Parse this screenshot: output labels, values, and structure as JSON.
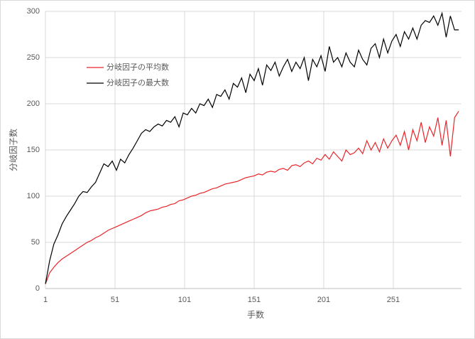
{
  "chart_data": {
    "type": "line",
    "x_label": "手数",
    "y_label": "分岐因子数",
    "x": [
      1,
      4,
      7,
      10,
      13,
      16,
      19,
      22,
      25,
      28,
      31,
      34,
      37,
      40,
      43,
      46,
      49,
      52,
      55,
      58,
      61,
      64,
      67,
      70,
      73,
      76,
      79,
      82,
      85,
      88,
      91,
      94,
      97,
      100,
      103,
      106,
      109,
      112,
      115,
      118,
      121,
      124,
      127,
      130,
      133,
      136,
      139,
      142,
      145,
      148,
      151,
      154,
      157,
      160,
      163,
      166,
      169,
      172,
      175,
      178,
      181,
      184,
      187,
      190,
      193,
      196,
      199,
      202,
      205,
      208,
      211,
      214,
      217,
      220,
      223,
      226,
      229,
      232,
      235,
      238,
      241,
      244,
      247,
      250,
      253,
      256,
      259,
      262,
      265,
      268,
      271,
      274,
      277,
      280,
      283,
      286,
      289,
      292,
      295,
      298
    ],
    "series": [
      {
        "name": "分岐因子の平均数",
        "color": "#e8252a",
        "values": [
          5,
          17,
          23,
          28,
          32,
          35,
          38,
          41,
          44,
          47,
          50,
          52,
          55,
          57,
          60,
          63,
          65,
          67,
          69,
          71,
          73,
          75,
          77,
          79,
          82,
          84,
          85,
          86,
          88,
          89,
          91,
          92,
          95,
          96,
          98,
          100,
          101,
          103,
          104,
          106,
          108,
          109,
          111,
          113,
          114,
          115,
          116,
          118,
          120,
          121,
          122,
          124,
          123,
          126,
          127,
          126,
          129,
          130,
          128,
          133,
          134,
          132,
          136,
          138,
          135,
          141,
          139,
          145,
          140,
          148,
          143,
          138,
          150,
          145,
          147,
          152,
          146,
          160,
          150,
          158,
          148,
          162,
          152,
          160,
          166,
          155,
          170,
          150,
          172,
          160,
          180,
          158,
          175,
          165,
          185,
          155,
          182,
          143,
          185,
          192
        ]
      },
      {
        "name": "分岐因子の最大数",
        "color": "#000000",
        "values": [
          5,
          30,
          48,
          58,
          70,
          78,
          85,
          92,
          100,
          105,
          104,
          110,
          115,
          125,
          135,
          132,
          138,
          128,
          140,
          136,
          145,
          152,
          160,
          168,
          172,
          170,
          175,
          178,
          176,
          182,
          180,
          186,
          175,
          190,
          188,
          195,
          190,
          200,
          198,
          205,
          196,
          210,
          208,
          215,
          205,
          222,
          218,
          228,
          212,
          232,
          225,
          238,
          220,
          242,
          236,
          245,
          230,
          240,
          248,
          235,
          245,
          238,
          250,
          225,
          248,
          240,
          252,
          235,
          262,
          245,
          250,
          240,
          255,
          245,
          240,
          258,
          248,
          242,
          260,
          265,
          250,
          270,
          255,
          268,
          275,
          262,
          278,
          270,
          282,
          270,
          285,
          290,
          288,
          295,
          285,
          298,
          272,
          295,
          280,
          280
        ]
      }
    ],
    "xlim": [
      1,
      300
    ],
    "xticks": [
      1,
      51,
      101,
      151,
      201,
      251
    ],
    "ylim": [
      0,
      300
    ],
    "yticks": [
      0,
      50,
      100,
      150,
      200,
      250,
      300
    ],
    "grid": true,
    "legend": "upper left"
  }
}
